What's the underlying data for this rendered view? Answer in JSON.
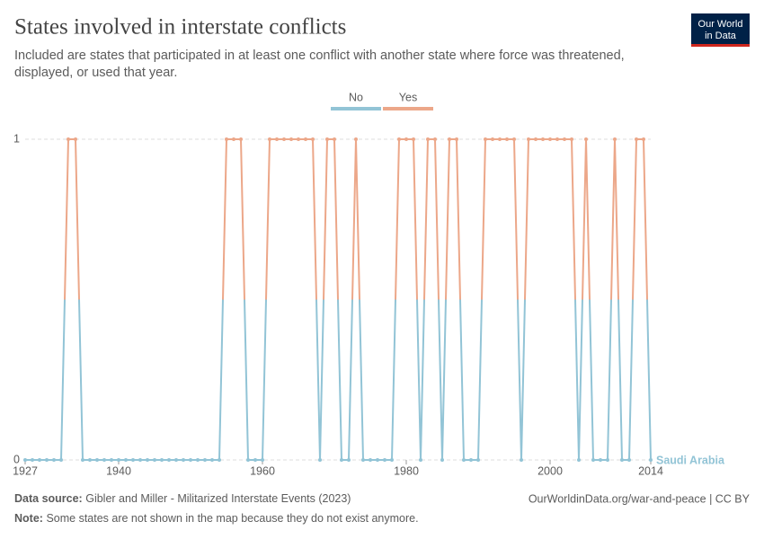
{
  "header": {
    "title": "States involved in interstate conflicts",
    "subtitle": [
      "Included are states that participated in at least one conflict with another state where force was threatened,",
      "displayed, or used that year."
    ],
    "logo": [
      "Our World",
      "in Data"
    ]
  },
  "chart_data": {
    "type": "line",
    "legend": [
      {
        "name": "No",
        "color": "#92c4d6"
      },
      {
        "name": "Yes",
        "color": "#eca789"
      }
    ],
    "x": [
      1927,
      1928,
      1929,
      1930,
      1931,
      1932,
      1933,
      1934,
      1935,
      1936,
      1937,
      1938,
      1939,
      1940,
      1941,
      1942,
      1943,
      1944,
      1945,
      1946,
      1947,
      1948,
      1949,
      1950,
      1951,
      1952,
      1953,
      1954,
      1955,
      1956,
      1957,
      1958,
      1959,
      1960,
      1961,
      1962,
      1963,
      1964,
      1965,
      1966,
      1967,
      1968,
      1969,
      1970,
      1971,
      1972,
      1973,
      1974,
      1975,
      1976,
      1977,
      1978,
      1979,
      1980,
      1981,
      1982,
      1983,
      1984,
      1985,
      1986,
      1987,
      1988,
      1989,
      1990,
      1991,
      1992,
      1993,
      1994,
      1995,
      1996,
      1997,
      1998,
      1999,
      2000,
      2001,
      2002,
      2003,
      2004,
      2005,
      2006,
      2007,
      2008,
      2009,
      2010,
      2011,
      2012,
      2013,
      2014
    ],
    "series": [
      {
        "name": "Saudi Arabia",
        "values": [
          0,
          0,
          0,
          0,
          0,
          0,
          1,
          1,
          0,
          0,
          0,
          0,
          0,
          0,
          0,
          0,
          0,
          0,
          0,
          0,
          0,
          0,
          0,
          0,
          0,
          0,
          0,
          0,
          1,
          1,
          1,
          0,
          0,
          0,
          1,
          1,
          1,
          1,
          1,
          1,
          1,
          0,
          1,
          1,
          0,
          0,
          1,
          0,
          0,
          0,
          0,
          0,
          1,
          1,
          1,
          0,
          1,
          1,
          0,
          1,
          1,
          0,
          0,
          0,
          1,
          1,
          1,
          1,
          1,
          0,
          1,
          1,
          1,
          1,
          1,
          1,
          1,
          0,
          1,
          0,
          0,
          0,
          1,
          0,
          0,
          1,
          1,
          0
        ]
      }
    ],
    "xlim": [
      1927,
      2014
    ],
    "xticks": [
      1927,
      1940,
      1960,
      1980,
      2000,
      2014
    ],
    "ylim": [
      0,
      1
    ],
    "yticks": [
      0,
      1
    ],
    "grid": true
  },
  "footer": {
    "source_label": "Data source:",
    "source": "Gibler and Miller - Militarized Interstate Events (2023)",
    "url": "OurWorldinData.org/war-and-peace | CC BY",
    "note_label": "Note:",
    "note": "Some states are not shown in the map because they do not exist anymore."
  }
}
